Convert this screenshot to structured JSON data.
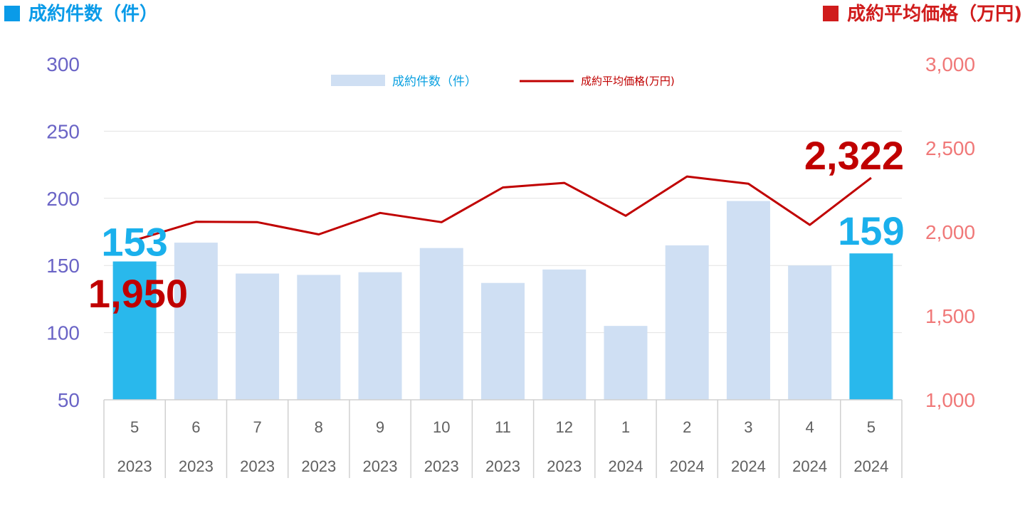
{
  "header": {
    "left_title": "成約件数（件）",
    "right_title": "成約平均価格（万円)"
  },
  "chart_data": {
    "type": "bar+line",
    "categories": [
      "5",
      "6",
      "7",
      "8",
      "9",
      "10",
      "11",
      "12",
      "1",
      "2",
      "3",
      "4",
      "5"
    ],
    "years": [
      "2023",
      "2023",
      "2023",
      "2023",
      "2023",
      "2023",
      "2023",
      "2023",
      "2024",
      "2024",
      "2024",
      "2024",
      "2024"
    ],
    "series": [
      {
        "name": "成約件数（件）",
        "type": "bar",
        "axis": "left",
        "values": [
          153,
          167,
          144,
          143,
          145,
          163,
          137,
          147,
          105,
          165,
          198,
          150,
          159
        ],
        "color": "#cfdff3",
        "highlight_color": "#29b8ec",
        "highlight_indices": [
          0,
          12
        ]
      },
      {
        "name": "成約平均価格(万円)",
        "type": "line",
        "axis": "right",
        "values": [
          1950,
          2060,
          2058,
          1985,
          2113,
          2058,
          2265,
          2292,
          2096,
          2330,
          2287,
          2042,
          2322
        ],
        "color": "#c00000"
      }
    ],
    "y_left": {
      "min": 50,
      "max": 300,
      "ticks": [
        "300",
        "250",
        "200",
        "150",
        "100",
        "50"
      ],
      "color": "#6a64c6"
    },
    "y_right": {
      "min": 1000,
      "max": 3000,
      "ticks": [
        "3,000",
        "2,500",
        "2,000",
        "1,500",
        "1,000"
      ],
      "color": "#f07878"
    },
    "data_labels": [
      {
        "text": "153",
        "color": "#1ab0ec"
      },
      {
        "text": "1,950",
        "color": "#c00000"
      },
      {
        "text": "2,322",
        "color": "#c00000"
      },
      {
        "text": "159",
        "color": "#1ab0ec"
      }
    ],
    "grid": true,
    "legend_position": "top-center"
  }
}
